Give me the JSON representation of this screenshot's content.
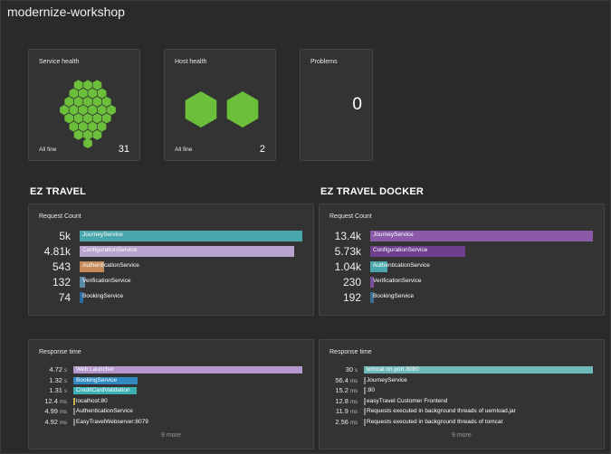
{
  "header": {
    "title": "modernize-workshop"
  },
  "service_health": {
    "title": "Service health",
    "status": "All fine",
    "count": "31",
    "color": "#6cbf3a"
  },
  "host_health": {
    "title": "Host health",
    "status": "All fine",
    "count": "2",
    "color": "#6cbf3a"
  },
  "problems": {
    "title": "Problems",
    "count": "0"
  },
  "sections": [
    {
      "title": "EZ TRAVEL",
      "request": {
        "title": "Request Count",
        "max": 5000,
        "rows": [
          {
            "value": "5k",
            "amount": 5000,
            "label": "JourneyService",
            "color": "#4aa7ad"
          },
          {
            "value": "4.81k",
            "amount": 4810,
            "label": "ConfigurationService",
            "color": "#b8a4cf"
          },
          {
            "value": "543",
            "amount": 543,
            "label": "AuthenticationService",
            "color": "#c48a5a"
          },
          {
            "value": "132",
            "amount": 132,
            "label": "VerificationService",
            "color": "#5a8aa6"
          },
          {
            "value": "74",
            "amount": 74,
            "label": "BookingService",
            "color": "#2c6ea3"
          }
        ]
      },
      "response": {
        "title": "Response time",
        "max": 4.72,
        "more": "9 more",
        "rows": [
          {
            "num": "4.72",
            "unit": "s",
            "amount": 4.72,
            "label": "Web Launcher",
            "color": "#b597cc"
          },
          {
            "num": "1.32",
            "unit": "s",
            "amount": 1.32,
            "label": "BookingService",
            "color": "#2f8ac4"
          },
          {
            "num": "1.31",
            "unit": "s",
            "amount": 1.31,
            "label": "CreditCardValidation",
            "color": "#3bb0b5"
          },
          {
            "num": "12.4",
            "unit": "ms",
            "amount": 0.0124,
            "label": "localhost:80",
            "color": "#c9b14d"
          },
          {
            "num": "4.99",
            "unit": "ms",
            "amount": 0.00499,
            "label": "AuthenticationService",
            "color": "#888888"
          },
          {
            "num": "4.92",
            "unit": "ms",
            "amount": 0.00492,
            "label": "EasyTravelWebserver:8079",
            "color": "#888888"
          }
        ]
      }
    },
    {
      "title": "EZ TRAVEL DOCKER",
      "request": {
        "title": "Request Count",
        "max": 13400,
        "rows": [
          {
            "value": "13.4k",
            "amount": 13400,
            "label": "JourneyService",
            "color": "#8a5aa8"
          },
          {
            "value": "5.73k",
            "amount": 5730,
            "label": "ConfigurationService",
            "color": "#6e3f8d"
          },
          {
            "value": "1.04k",
            "amount": 1040,
            "label": "AuthenticationService",
            "color": "#4aa7ad"
          },
          {
            "value": "230",
            "amount": 230,
            "label": "VerificationService",
            "color": "#7a4e9a"
          },
          {
            "value": "192",
            "amount": 192,
            "label": "BookingService",
            "color": "#3a6f8f"
          }
        ]
      },
      "response": {
        "title": "Response time",
        "max": 30,
        "more": "9 more",
        "rows": [
          {
            "num": "30",
            "unit": "s",
            "amount": 30,
            "label": "tomcat on port 8080",
            "color": "#6fb8b8"
          },
          {
            "num": "56.4",
            "unit": "ms",
            "amount": 0.0564,
            "label": "JourneyService",
            "color": "#888888"
          },
          {
            "num": "15.2",
            "unit": "ms",
            "amount": 0.0152,
            "label": ":80",
            "color": "#888888"
          },
          {
            "num": "12.8",
            "unit": "ms",
            "amount": 0.0128,
            "label": "easyTravel Customer Frontend",
            "color": "#888888"
          },
          {
            "num": "11.9",
            "unit": "ms",
            "amount": 0.0119,
            "label": "Requests executed in background threads of uemload.jar",
            "color": "#888888"
          },
          {
            "num": "2.56",
            "unit": "ms",
            "amount": 0.00256,
            "label": "Requests executed in background threads of tomcat",
            "color": "#888888"
          }
        ]
      }
    }
  ]
}
